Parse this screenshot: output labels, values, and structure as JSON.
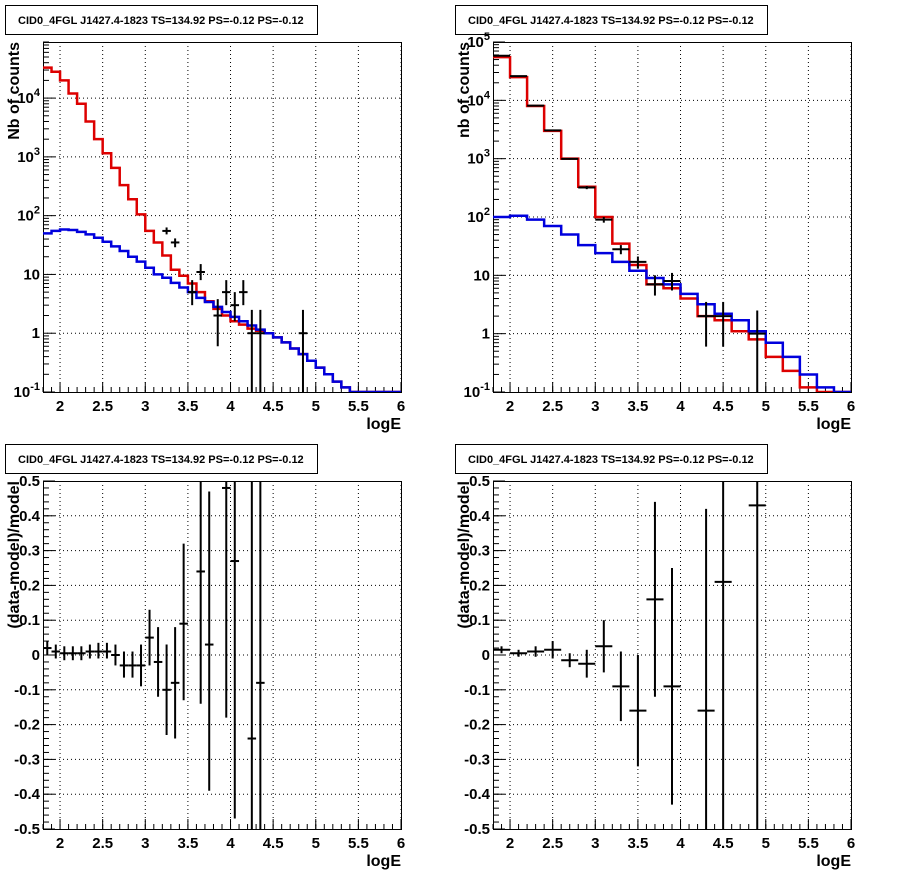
{
  "chart_data": [
    {
      "type": "line",
      "title": "CID0_4FGL J1427.4-1823 TS=134.92 PS=-0.12 PS=-0.12",
      "xlabel": "logE",
      "ylabel": "Nb of counts",
      "xlim": [
        1.8,
        6.0
      ],
      "ylim": [
        0.1,
        90000
      ],
      "yscale": "log",
      "xticks": [
        "2",
        "2.5",
        "3",
        "3.5",
        "4",
        "4.5",
        "5",
        "5.5",
        "6"
      ],
      "yticks": [
        "10^-1",
        "1",
        "10",
        "10^2",
        "10^3",
        "10^4"
      ],
      "grid": true,
      "bin_edges": [
        1.8,
        1.9,
        2.0,
        2.1,
        2.2,
        2.3,
        2.4,
        2.5,
        2.6,
        2.7,
        2.8,
        2.9,
        3.0,
        3.1,
        3.2,
        3.3,
        3.4,
        3.5,
        3.6,
        3.7,
        3.8,
        3.9,
        4.0,
        4.1,
        4.2,
        4.3,
        4.4,
        4.5,
        4.6,
        4.7,
        4.8,
        4.9,
        5.0,
        5.1,
        5.2,
        5.3,
        5.4,
        5.5,
        5.6,
        5.7,
        5.8,
        5.9,
        6.0
      ],
      "series": [
        {
          "color": "#dd0000",
          "style": "step",
          "values": [
            33000,
            28000,
            20000,
            12000,
            8000,
            4000,
            2000,
            1150,
            650,
            330,
            190,
            105,
            55,
            35,
            21,
            12,
            9.5,
            7,
            5,
            3.5,
            2.6,
            2,
            1.6,
            1.4,
            1.2,
            1.1,
            1.0,
            0.85,
            0.7,
            0.55,
            0.44,
            0.34,
            0.26,
            0.2,
            0.15,
            0.12,
            0.1,
            0.1,
            0.1,
            0.1,
            0.1,
            0.1
          ]
        },
        {
          "color": "#0000dd",
          "style": "step",
          "values": [
            50,
            55,
            58,
            57,
            53,
            48,
            42,
            36,
            30,
            25,
            20,
            16.5,
            13,
            10,
            8.8,
            7.2,
            6,
            5,
            4,
            3.4,
            2.8,
            2.3,
            1.9,
            1.6,
            1.35,
            1.15,
            1.0,
            0.85,
            0.7,
            0.55,
            0.44,
            0.34,
            0.26,
            0.2,
            0.15,
            0.12,
            0.1,
            0.1,
            0.1,
            0.1,
            0.1,
            0.1
          ]
        },
        {
          "color": "#000000",
          "style": "points",
          "points": [
            {
              "x": 3.25,
              "y": 55,
              "lo": 48,
              "hi": 63
            },
            {
              "x": 3.35,
              "y": 35,
              "lo": 29,
              "hi": 41
            },
            {
              "x": 3.55,
              "y": 5,
              "lo": 3,
              "hi": 8
            },
            {
              "x": 3.65,
              "y": 11,
              "lo": 8,
              "hi": 15
            },
            {
              "x": 3.85,
              "y": 2,
              "lo": 0.6,
              "hi": 3.8
            },
            {
              "x": 3.95,
              "y": 5,
              "lo": 3,
              "hi": 8
            },
            {
              "x": 4.05,
              "y": 3,
              "lo": 1.6,
              "hi": 5
            },
            {
              "x": 4.15,
              "y": 5,
              "lo": 3,
              "hi": 8
            },
            {
              "x": 4.25,
              "y": 1,
              "lo": 0.1,
              "hi": 2.5
            },
            {
              "x": 4.35,
              "y": 1,
              "lo": 0.1,
              "hi": 2.5
            },
            {
              "x": 4.85,
              "y": 1,
              "lo": 0.1,
              "hi": 2.5
            }
          ]
        }
      ]
    },
    {
      "type": "line",
      "title": "CID0_4FGL J1427.4-1823 TS=134.92 PS=-0.12 PS=-0.12",
      "xlabel": "logE",
      "ylabel": "nb of counts",
      "xlim": [
        1.8,
        6.0
      ],
      "ylim": [
        0.1,
        100000
      ],
      "yscale": "log",
      "xticks": [
        "2",
        "2.5",
        "3",
        "3.5",
        "4",
        "4.5",
        "5",
        "5.5",
        "6"
      ],
      "yticks": [
        "10^-1",
        "1",
        "10",
        "10^2",
        "10^3",
        "10^4",
        "10^5"
      ],
      "grid": true,
      "bin_edges": [
        1.8,
        2.0,
        2.2,
        2.4,
        2.6,
        2.8,
        3.0,
        3.2,
        3.4,
        3.6,
        3.8,
        4.0,
        4.2,
        4.4,
        4.6,
        4.8,
        5.0,
        5.2,
        5.4,
        5.6,
        5.8,
        6.0
      ],
      "series": [
        {
          "color": "#dd0000",
          "style": "step",
          "values": [
            55000,
            25000,
            8000,
            3000,
            1000,
            330,
            100,
            35,
            15,
            7,
            6,
            4,
            2,
            1.7,
            1.1,
            0.8,
            0.4,
            0.23,
            0.12,
            0.1,
            0.1
          ]
        },
        {
          "color": "#0000dd",
          "style": "step",
          "values": [
            100,
            105,
            90,
            70,
            50,
            33,
            24,
            17,
            12,
            9,
            7,
            4.8,
            3.2,
            2.2,
            1.7,
            1.1,
            0.7,
            0.4,
            0.2,
            0.12,
            0.1
          ]
        },
        {
          "color": "#000000",
          "style": "points",
          "points": [
            {
              "x": 1.9,
              "y": 58000,
              "lo": 57000,
              "hi": 59000
            },
            {
              "x": 2.1,
              "y": 26000,
              "lo": 25500,
              "hi": 26500
            },
            {
              "x": 2.3,
              "y": 8100,
              "lo": 8000,
              "hi": 8200
            },
            {
              "x": 2.5,
              "y": 3050,
              "lo": 3000,
              "hi": 3100
            },
            {
              "x": 2.7,
              "y": 990,
              "lo": 960,
              "hi": 1020
            },
            {
              "x": 2.9,
              "y": 320,
              "lo": 300,
              "hi": 340
            },
            {
              "x": 3.1,
              "y": 90,
              "lo": 80,
              "hi": 100
            },
            {
              "x": 3.3,
              "y": 28,
              "lo": 23,
              "hi": 33
            },
            {
              "x": 3.5,
              "y": 17,
              "lo": 13,
              "hi": 21
            },
            {
              "x": 3.7,
              "y": 7,
              "lo": 4.5,
              "hi": 10
            },
            {
              "x": 3.9,
              "y": 8,
              "lo": 5.5,
              "hi": 11
            },
            {
              "x": 4.3,
              "y": 2,
              "lo": 0.6,
              "hi": 3.5
            },
            {
              "x": 4.5,
              "y": 2,
              "lo": 0.6,
              "hi": 3.5
            },
            {
              "x": 4.9,
              "y": 1,
              "lo": 0.1,
              "hi": 2.5
            }
          ]
        }
      ]
    },
    {
      "type": "scatter",
      "title": "CID0_4FGL J1427.4-1823 TS=134.92 PS=-0.12 PS=-0.12",
      "xlabel": "logE",
      "ylabel": "(data-model)/model",
      "xlim": [
        1.8,
        6.0
      ],
      "ylim": [
        -0.5,
        0.5
      ],
      "xticks": [
        "2",
        "2.5",
        "3",
        "3.5",
        "4",
        "4.5",
        "5",
        "5.5",
        "6"
      ],
      "yticks": [
        "-0.5",
        "-0.4",
        "-0.3",
        "-0.2",
        "-0.1",
        "0",
        "0.1",
        "0.2",
        "0.3",
        "0.4",
        "0.5"
      ],
      "grid": true,
      "xerr": 0.05,
      "points": [
        {
          "x": 1.85,
          "y": 0.02,
          "lo": 0.0,
          "hi": 0.04
        },
        {
          "x": 1.95,
          "y": 0.01,
          "lo": -0.01,
          "hi": 0.03
        },
        {
          "x": 2.05,
          "y": 0.005,
          "lo": -0.015,
          "hi": 0.025
        },
        {
          "x": 2.15,
          "y": 0.005,
          "lo": -0.015,
          "hi": 0.025
        },
        {
          "x": 2.25,
          "y": 0.005,
          "lo": -0.015,
          "hi": 0.025
        },
        {
          "x": 2.35,
          "y": 0.01,
          "lo": -0.01,
          "hi": 0.03
        },
        {
          "x": 2.45,
          "y": 0.01,
          "lo": -0.01,
          "hi": 0.035
        },
        {
          "x": 2.55,
          "y": 0.01,
          "lo": -0.01,
          "hi": 0.035
        },
        {
          "x": 2.65,
          "y": 0.0,
          "lo": -0.03,
          "hi": 0.03
        },
        {
          "x": 2.75,
          "y": -0.03,
          "lo": -0.065,
          "hi": 0.01
        },
        {
          "x": 2.85,
          "y": -0.03,
          "lo": -0.065,
          "hi": 0.01
        },
        {
          "x": 2.95,
          "y": -0.03,
          "lo": -0.09,
          "hi": 0.03
        },
        {
          "x": 3.05,
          "y": 0.05,
          "lo": -0.03,
          "hi": 0.13
        },
        {
          "x": 3.15,
          "y": -0.02,
          "lo": -0.12,
          "hi": 0.08
        },
        {
          "x": 3.25,
          "y": -0.1,
          "lo": -0.23,
          "hi": 0.03
        },
        {
          "x": 3.35,
          "y": -0.08,
          "lo": -0.24,
          "hi": 0.08
        },
        {
          "x": 3.45,
          "y": 0.09,
          "lo": -0.13,
          "hi": 0.32
        },
        {
          "x": 3.65,
          "y": 0.24,
          "lo": -0.14,
          "hi": 0.5
        },
        {
          "x": 3.75,
          "y": 0.03,
          "lo": -0.39,
          "hi": 0.47
        },
        {
          "x": 3.95,
          "y": 0.48,
          "lo": -0.18,
          "hi": 0.5
        },
        {
          "x": 4.05,
          "y": 0.27,
          "lo": -0.47,
          "hi": 0.5
        },
        {
          "x": 4.25,
          "y": -0.24,
          "lo": -0.5,
          "hi": 0.5
        },
        {
          "x": 4.35,
          "y": -0.08,
          "lo": -0.5,
          "hi": 0.5
        }
      ]
    },
    {
      "type": "scatter",
      "title": "CID0_4FGL J1427.4-1823 TS=134.92 PS=-0.12 PS=-0.12",
      "xlabel": "logE",
      "ylabel": "(data-model)/model",
      "xlim": [
        1.8,
        6.0
      ],
      "ylim": [
        -0.5,
        0.5
      ],
      "xticks": [
        "2",
        "2.5",
        "3",
        "3.5",
        "4",
        "4.5",
        "5",
        "5.5",
        "6"
      ],
      "yticks": [
        "-0.5",
        "-0.4",
        "-0.3",
        "-0.2",
        "-0.1",
        "0",
        "0.1",
        "0.2",
        "0.3",
        "0.4",
        "0.5"
      ],
      "grid": true,
      "xerr": 0.1,
      "points": [
        {
          "x": 1.9,
          "y": 0.015,
          "lo": 0.005,
          "hi": 0.025
        },
        {
          "x": 2.1,
          "y": 0.005,
          "lo": -0.005,
          "hi": 0.015
        },
        {
          "x": 2.3,
          "y": 0.01,
          "lo": -0.005,
          "hi": 0.025
        },
        {
          "x": 2.5,
          "y": 0.015,
          "lo": -0.01,
          "hi": 0.04
        },
        {
          "x": 2.7,
          "y": -0.015,
          "lo": -0.035,
          "hi": 0.005
        },
        {
          "x": 2.9,
          "y": -0.025,
          "lo": -0.065,
          "hi": 0.015
        },
        {
          "x": 3.1,
          "y": 0.025,
          "lo": -0.05,
          "hi": 0.1
        },
        {
          "x": 3.3,
          "y": -0.09,
          "lo": -0.19,
          "hi": 0.01
        },
        {
          "x": 3.5,
          "y": -0.16,
          "lo": -0.32,
          "hi": 0.0
        },
        {
          "x": 3.7,
          "y": 0.16,
          "lo": -0.12,
          "hi": 0.44
        },
        {
          "x": 3.9,
          "y": -0.09,
          "lo": -0.43,
          "hi": 0.25
        },
        {
          "x": 4.3,
          "y": -0.16,
          "lo": -0.5,
          "hi": 0.42
        },
        {
          "x": 4.5,
          "y": 0.21,
          "lo": -0.5,
          "hi": 0.5
        },
        {
          "x": 4.9,
          "y": 0.43,
          "lo": -0.5,
          "hi": 0.5
        }
      ]
    }
  ]
}
